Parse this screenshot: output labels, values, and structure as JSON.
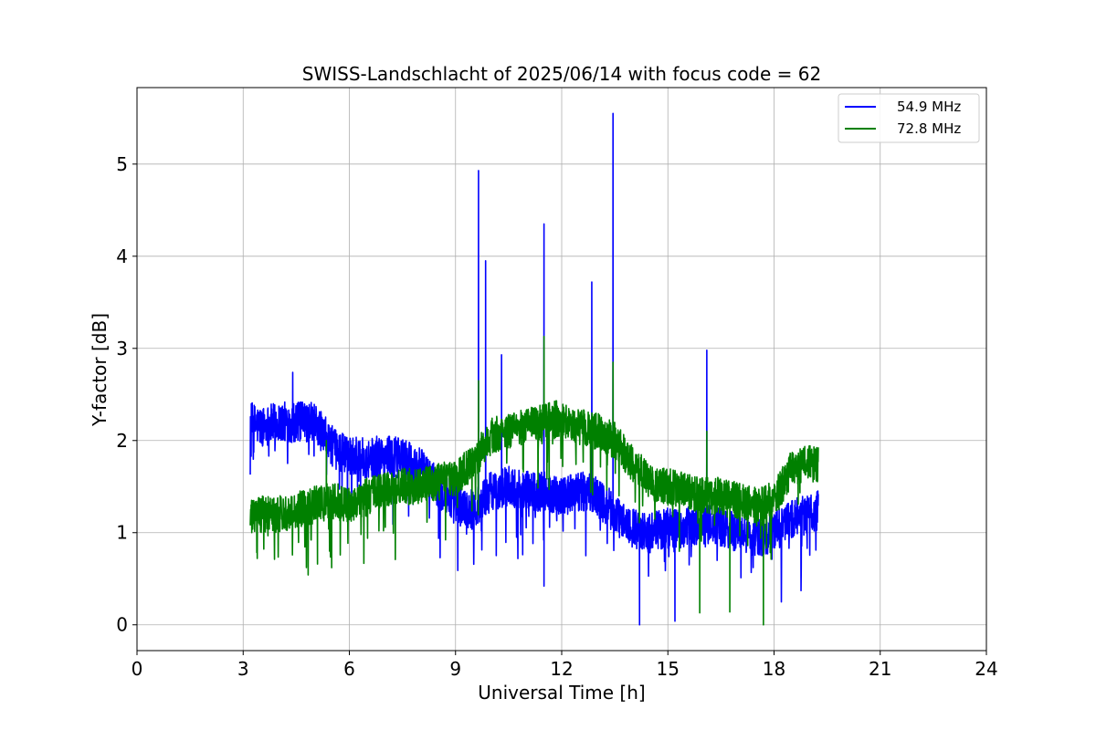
{
  "chart_data": {
    "type": "line",
    "title": "SWISS-Landschlacht of 2025/06/14 with focus code = 62",
    "xlabel": "Universal Time [h]",
    "ylabel": "Y-factor [dB]",
    "xlim": [
      0,
      24
    ],
    "ylim": [
      -0.28,
      5.83
    ],
    "xticks": [
      0,
      3,
      6,
      9,
      12,
      15,
      18,
      21,
      24
    ],
    "xtick_labels": [
      "0",
      "3",
      "6",
      "9",
      "12",
      "15",
      "18",
      "21",
      "24"
    ],
    "yticks": [
      0,
      1,
      2,
      3,
      4,
      5
    ],
    "ytick_labels": [
      "0",
      "1",
      "2",
      "3",
      "4",
      "5"
    ],
    "grid": true,
    "legend_position": "top-right",
    "series": [
      {
        "name": "54.9 MHz",
        "color": "#0000ff",
        "noise": 0.22,
        "x": [
          3.2,
          3.5,
          4.0,
          4.5,
          5.0,
          5.3,
          5.6,
          6.0,
          6.5,
          7.0,
          7.5,
          8.0,
          8.5,
          9.0,
          9.5,
          10.0,
          10.5,
          11.0,
          11.5,
          12.0,
          12.5,
          13.0,
          13.5,
          14.0,
          14.5,
          15.0,
          15.5,
          16.0,
          16.5,
          17.0,
          17.5,
          18.0,
          18.5,
          19.0,
          19.25
        ],
        "y": [
          2.2,
          2.15,
          2.2,
          2.2,
          2.2,
          2.05,
          1.9,
          1.85,
          1.8,
          1.85,
          1.8,
          1.7,
          1.5,
          1.3,
          1.25,
          1.45,
          1.5,
          1.45,
          1.45,
          1.4,
          1.45,
          1.4,
          1.2,
          1.05,
          1.0,
          1.05,
          1.05,
          1.1,
          1.05,
          1.0,
          0.95,
          1.0,
          1.15,
          1.2,
          1.25
        ],
        "spikes": [
          {
            "x": 4.4,
            "y": 2.74
          },
          {
            "x": 9.65,
            "y": 4.93
          },
          {
            "x": 9.85,
            "y": 3.95
          },
          {
            "x": 10.3,
            "y": 2.93
          },
          {
            "x": 11.5,
            "y": 4.35
          },
          {
            "x": 12.85,
            "y": 3.72
          },
          {
            "x": 13.45,
            "y": 5.55
          },
          {
            "x": 16.1,
            "y": 2.98
          },
          {
            "x": 14.2,
            "y": 0.0
          },
          {
            "x": 11.5,
            "y": 0.42
          },
          {
            "x": 15.2,
            "y": 0.04
          }
        ]
      },
      {
        "name": "72.8 MHz",
        "color": "#008000",
        "noise": 0.2,
        "x": [
          3.2,
          3.5,
          4.0,
          4.5,
          5.0,
          5.5,
          6.0,
          6.5,
          7.0,
          7.5,
          8.0,
          8.5,
          9.0,
          9.5,
          10.0,
          10.5,
          11.0,
          11.5,
          12.0,
          12.5,
          13.0,
          13.5,
          14.0,
          14.5,
          15.0,
          15.5,
          16.0,
          16.5,
          17.0,
          17.5,
          18.0,
          18.5,
          19.0,
          19.25
        ],
        "y": [
          1.15,
          1.2,
          1.2,
          1.25,
          1.3,
          1.35,
          1.3,
          1.4,
          1.45,
          1.5,
          1.5,
          1.55,
          1.6,
          1.75,
          2.05,
          2.1,
          2.15,
          2.2,
          2.25,
          2.15,
          2.1,
          2.0,
          1.75,
          1.55,
          1.5,
          1.45,
          1.4,
          1.4,
          1.35,
          1.3,
          1.35,
          1.7,
          1.75,
          1.75
        ],
        "spikes": [
          {
            "x": 5.35,
            "y": 2.0
          },
          {
            "x": 9.65,
            "y": 2.65
          },
          {
            "x": 11.5,
            "y": 3.13
          },
          {
            "x": 13.45,
            "y": 2.85
          },
          {
            "x": 16.1,
            "y": 2.1
          },
          {
            "x": 17.7,
            "y": 0.0
          },
          {
            "x": 16.75,
            "y": 0.14
          },
          {
            "x": 15.9,
            "y": 0.13
          },
          {
            "x": 5.5,
            "y": 0.62
          },
          {
            "x": 5.1,
            "y": 0.66
          }
        ]
      }
    ]
  }
}
